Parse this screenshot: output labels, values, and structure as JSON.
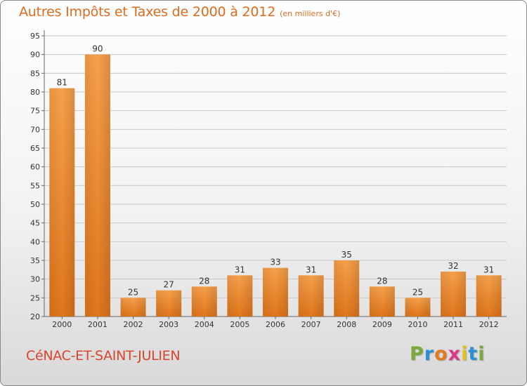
{
  "chart_data": {
    "type": "bar",
    "title": "Autres Impôts et Taxes de 2000 à 2012",
    "subtitle": "(en milliers d'€)",
    "xlabel": "",
    "ylabel": "",
    "categories": [
      "2000",
      "2001",
      "2002",
      "2003",
      "2004",
      "2005",
      "2006",
      "2007",
      "2008",
      "2009",
      "2010",
      "2011",
      "2012"
    ],
    "values": [
      81,
      90,
      25,
      27,
      28,
      31,
      33,
      31,
      35,
      28,
      25,
      32,
      31
    ],
    "ylim": [
      20,
      95
    ],
    "yticks": [
      20,
      25,
      30,
      35,
      40,
      45,
      50,
      55,
      60,
      65,
      70,
      75,
      80,
      85,
      90,
      95
    ],
    "grid": true,
    "bar_color": "#f08a2a"
  },
  "footer": {
    "commune": "CéNAC-ET-SAINT-JULIEN",
    "logo": "Proxiti",
    "logo_colors": [
      "#7aa83a",
      "#2c8fd6",
      "#e07a1e",
      "#d83a8a",
      "#e8c020",
      "#2c8fd6",
      "#7aa83a"
    ]
  }
}
